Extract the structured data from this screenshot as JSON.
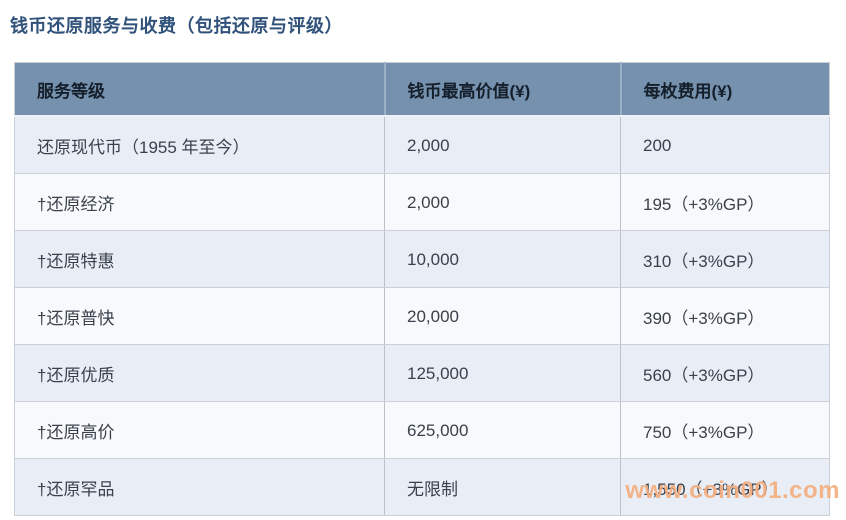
{
  "page": {
    "title": "钱币还原服务与收费（包括还原与评级）"
  },
  "table": {
    "headers": [
      "服务等级",
      "钱币最高价值(¥)",
      "每枚费用(¥)"
    ],
    "rows": [
      [
        "还原现代币（1955 年至今）",
        "2,000",
        "200"
      ],
      [
        "†还原经济",
        "2,000",
        "195（+3%GP）"
      ],
      [
        "†还原特惠",
        "10,000",
        "310（+3%GP）"
      ],
      [
        "†还原普快",
        "20,000",
        "390（+3%GP）"
      ],
      [
        "†还原优质",
        "125,000",
        "560（+3%GP）"
      ],
      [
        "†还原高价",
        "625,000",
        "750（+3%GP）"
      ],
      [
        "†还原罕品",
        "无限制",
        "1,550（+3%GP）"
      ]
    ]
  },
  "watermark": {
    "text": "www.coin001.com"
  },
  "colors": {
    "title_text": "#30527a",
    "header_bg": "#7691ae",
    "header_text": "#141f2b",
    "row_odd_bg": "#e9eef6",
    "row_even_bg": "#f7f9fc",
    "body_text": "#3a414b",
    "row_border": "#c9d0d8",
    "column_border": "#b9c2cb",
    "watermark_text": "#f5ad7d"
  }
}
